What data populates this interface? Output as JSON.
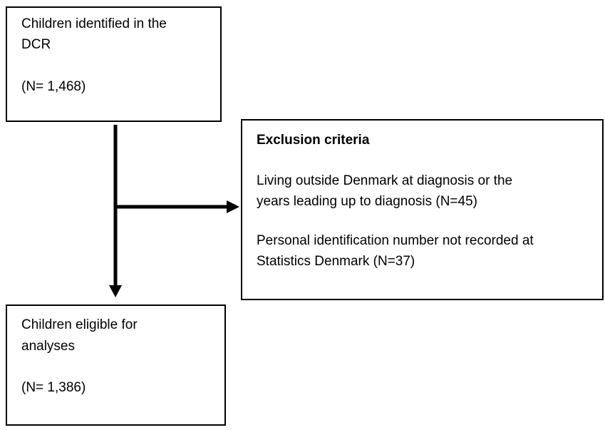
{
  "nodes": [
    {
      "lines": [
        "Children identified in the",
        "DCR"
      ],
      "count": "(N= 1,468)"
    },
    {
      "lines": [
        "Children eligible for",
        "analyses"
      ],
      "count": "(N= 1,386)"
    }
  ],
  "exclusion": {
    "title": "Exclusion criteria",
    "criteria": [
      {
        "lines": [
          "Living outside Denmark at diagnosis or the",
          "years leading up to diagnosis (N=45)"
        ]
      },
      {
        "lines": [
          "Personal identification number not recorded at",
          "Statistics Denmark (N=37)"
        ]
      }
    ]
  }
}
